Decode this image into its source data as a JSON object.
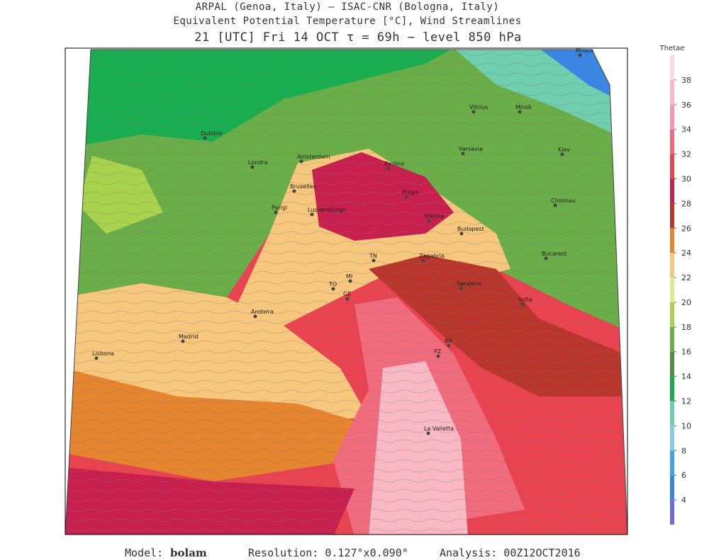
{
  "header": {
    "line1": "ARPAL (Genoa, Italy)  —  ISAC-CNR (Bologna, Italy)",
    "line2": "Equivalent Potential Temperature [°C], Wind Streamlines",
    "line3": "21 [UTC] Fri 14 OCT  τ = 69h  −  level 850 hPa"
  },
  "colorbar": {
    "title": "Thetae",
    "lim": [
      2,
      40
    ],
    "ticks": [
      4,
      6,
      8,
      10,
      12,
      14,
      16,
      18,
      20,
      22,
      24,
      26,
      28,
      30,
      32,
      34,
      36,
      38
    ],
    "colors": [
      "#6b6be8",
      "#3a86e4",
      "#3fa6e6",
      "#86cce0",
      "#6fcfaf",
      "#17ad4f",
      "#4e8f45",
      "#69ae48",
      "#a9d24d",
      "#dcea8e",
      "#f6c77c",
      "#e6852f",
      "#b8362b",
      "#c7204e",
      "#e8434f",
      "#f06b7b",
      "#f49aab",
      "#f8b9c5",
      "#fbd7de"
    ]
  },
  "cities": [
    "Mosca",
    "Minsk",
    "Vilnius",
    "Kiev",
    "Varsavia",
    "Berlino",
    "Praga",
    "Vienna",
    "Budapest",
    "Chisinau",
    "Bucarest",
    "Sarajevo",
    "Sofia",
    "Dublino",
    "Londra",
    "Amsterdam",
    "Bruxelles",
    "Parigi",
    "Lussemburgo",
    "Andorra",
    "Madrid",
    "Lisbona",
    "La Valletta",
    "Zagabria",
    "TN",
    "MI",
    "TO",
    "GE",
    "BA",
    "PZ"
  ],
  "footer": {
    "model_label": "Model:",
    "model": "bolam",
    "resolution": "Resolution: 0.127°x0.090°",
    "analysis": "Analysis: 00Z12OCT2016"
  }
}
